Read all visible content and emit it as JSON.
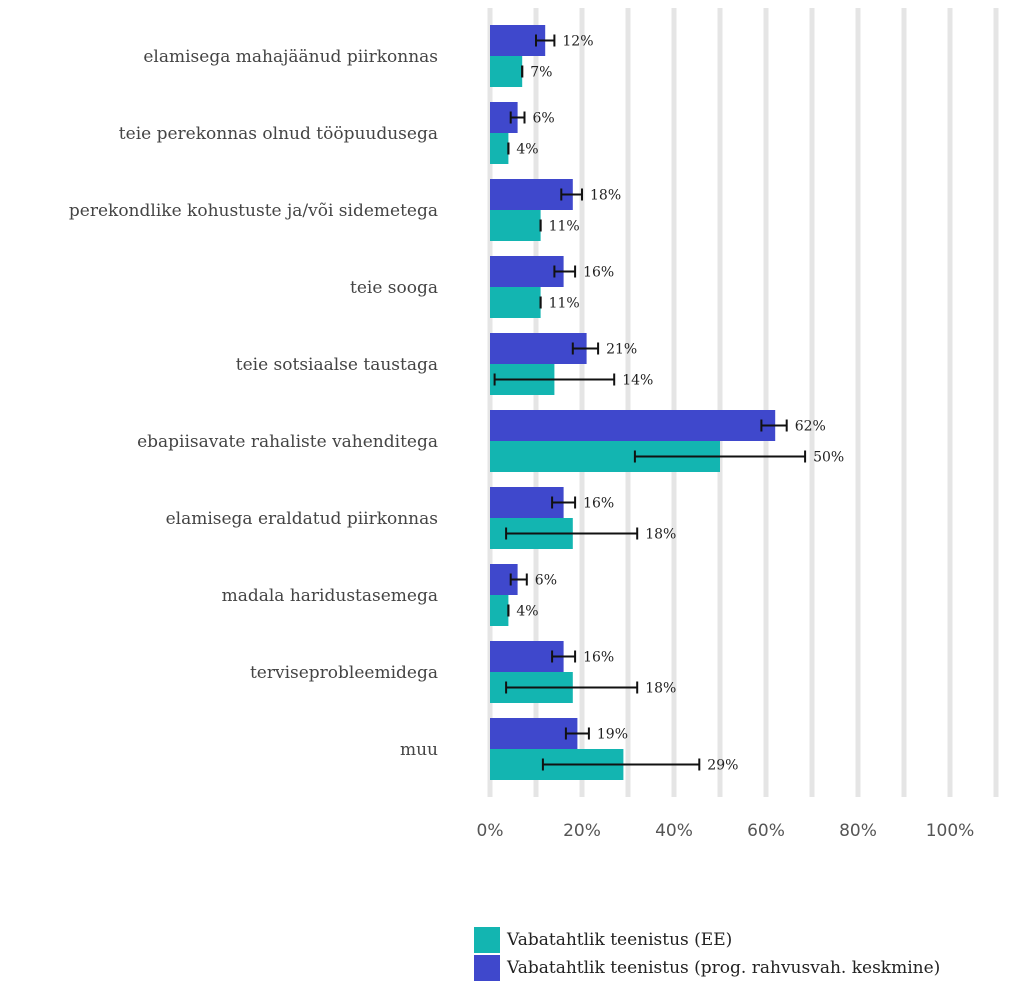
{
  "chart_data": {
    "type": "bar",
    "orientation": "horizontal",
    "categories": [
      "elamisega mahajäänud piirkonnas",
      "teie perekonnas olnud tööpuudusega",
      "perekondlike kohustuste ja/või sidemetega",
      "teie sooga",
      "teie sotsiaalse taustaga",
      "ebapiisavate rahaliste vahenditega",
      "elamisega eraldatud piirkonnas",
      "madala haridustasemega",
      "terviseprobleemidega",
      "muu"
    ],
    "series": [
      {
        "name": "Vabatahtlik teenistus (prog. rahvusvah. keskmine)",
        "color": "#3f48cc",
        "values": [
          12,
          6,
          18,
          16,
          21,
          62,
          16,
          6,
          16,
          19
        ],
        "labels": [
          "12%",
          "6%",
          "18%",
          "16%",
          "21%",
          "62%",
          "16%",
          "6%",
          "16%",
          "19%"
        ],
        "error_low": [
          10,
          4.5,
          15.5,
          14,
          18,
          59,
          13.5,
          4.5,
          13.5,
          16.5
        ],
        "error_high": [
          14,
          7.5,
          20,
          18.5,
          23.5,
          64.5,
          18.5,
          8,
          18.5,
          21.5
        ]
      },
      {
        "name": "Vabatahtlik teenistus (EE)",
        "color": "#13b5b1",
        "values": [
          7,
          4,
          11,
          11,
          14,
          50,
          18,
          4,
          18,
          29
        ],
        "labels": [
          "7%",
          "4%",
          "11%",
          "11%",
          "14%",
          "50%",
          "18%",
          "4%",
          "18%",
          "29%"
        ],
        "error_low": [
          7,
          4,
          11,
          11,
          1,
          31.5,
          3.5,
          4,
          3.5,
          11.5
        ],
        "error_high": [
          7,
          4,
          11,
          11,
          27,
          68.5,
          32,
          4,
          32,
          45.5
        ]
      }
    ],
    "xlim": [
      0,
      110
    ],
    "xticks": [
      0,
      20,
      40,
      60,
      80,
      100
    ],
    "xtick_labels": [
      "0%",
      "20%",
      "40%",
      "60%",
      "80%",
      "100%"
    ],
    "grid": true,
    "legend_position": "bottom-right",
    "legend_order": [
      "Vabatahtlik teenistus (EE)",
      "Vabatahtlik teenistus (prog. rahvusvah. keskmine)"
    ]
  }
}
